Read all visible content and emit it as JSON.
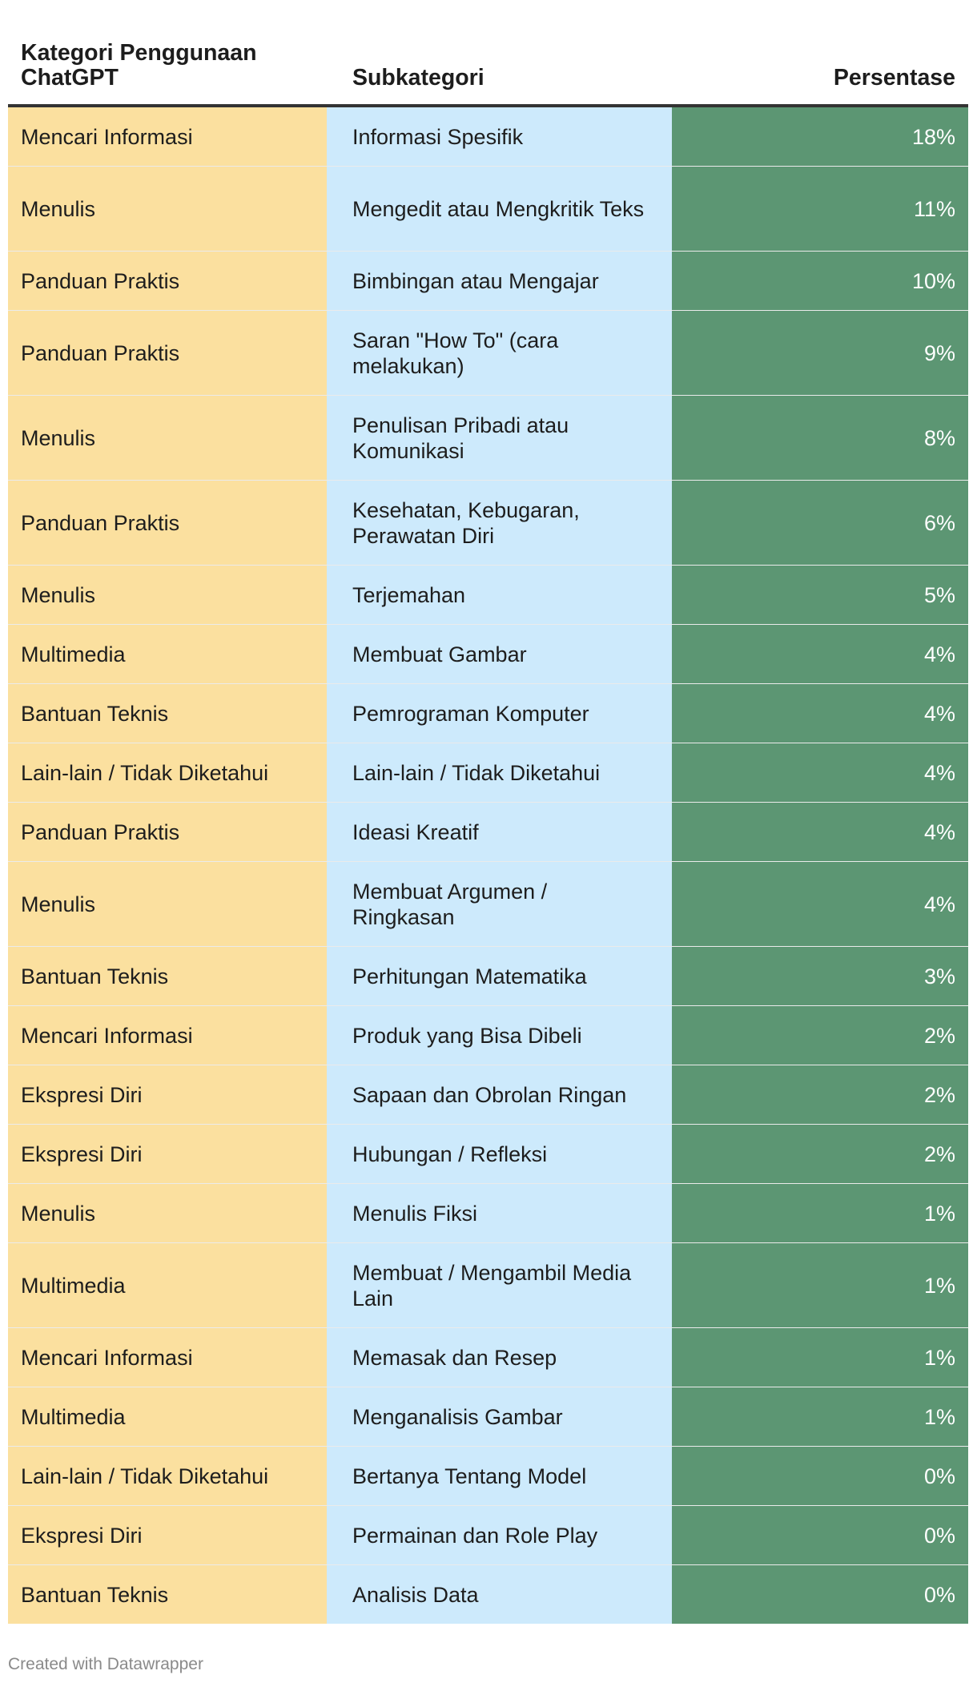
{
  "chart_data": {
    "type": "table",
    "columns": [
      "Kategori Penggunaan ChatGPT",
      "Subkategori",
      "Persentase"
    ],
    "rows": [
      {
        "category": "Mencari Informasi",
        "subcategory": "Informasi Spesifik",
        "percentage": "18%"
      },
      {
        "category": "Menulis",
        "subcategory": "Mengedit atau Mengkritik Teks",
        "percentage": "11%"
      },
      {
        "category": "Panduan Praktis",
        "subcategory": "Bimbingan atau Mengajar",
        "percentage": "10%"
      },
      {
        "category": "Panduan Praktis",
        "subcategory": "Saran \"How To\" (cara melakukan)",
        "percentage": "9%"
      },
      {
        "category": "Menulis",
        "subcategory": "Penulisan Pribadi atau Komunikasi",
        "percentage": "8%"
      },
      {
        "category": "Panduan Praktis",
        "subcategory": "Kesehatan, Kebugaran, Perawatan Diri",
        "percentage": "6%"
      },
      {
        "category": "Menulis",
        "subcategory": "Terjemahan",
        "percentage": "5%"
      },
      {
        "category": "Multimedia",
        "subcategory": "Membuat Gambar",
        "percentage": "4%"
      },
      {
        "category": "Bantuan Teknis",
        "subcategory": "Pemrograman Komputer",
        "percentage": "4%"
      },
      {
        "category": "Lain-lain / Tidak Diketahui",
        "subcategory": "Lain-lain / Tidak Diketahui",
        "percentage": "4%"
      },
      {
        "category": "Panduan Praktis",
        "subcategory": "Ideasi Kreatif",
        "percentage": "4%"
      },
      {
        "category": "Menulis",
        "subcategory": "Membuat Argumen / Ringkasan",
        "percentage": "4%"
      },
      {
        "category": "Bantuan Teknis",
        "subcategory": "Perhitungan Matematika",
        "percentage": "3%"
      },
      {
        "category": "Mencari Informasi",
        "subcategory": "Produk yang Bisa Dibeli",
        "percentage": "2%"
      },
      {
        "category": "Ekspresi Diri",
        "subcategory": "Sapaan dan Obrolan Ringan",
        "percentage": "2%"
      },
      {
        "category": "Ekspresi Diri",
        "subcategory": "Hubungan / Refleksi",
        "percentage": "2%"
      },
      {
        "category": "Menulis",
        "subcategory": "Menulis Fiksi",
        "percentage": "1%"
      },
      {
        "category": "Multimedia",
        "subcategory": "Membuat / Mengambil Media Lain",
        "percentage": "1%"
      },
      {
        "category": "Mencari Informasi",
        "subcategory": "Memasak dan Resep",
        "percentage": "1%"
      },
      {
        "category": "Multimedia",
        "subcategory": "Menganalisis Gambar",
        "percentage": "1%"
      },
      {
        "category": "Lain-lain / Tidak Diketahui",
        "subcategory": "Bertanya Tentang Model",
        "percentage": "0%"
      },
      {
        "category": "Ekspresi Diri",
        "subcategory": "Permainan dan Role Play",
        "percentage": "0%"
      },
      {
        "category": "Bantuan Teknis",
        "subcategory": "Analisis Data",
        "percentage": "0%"
      }
    ],
    "colors": {
      "category_column": "#fbe09f",
      "subcategory_column": "#cdeafc",
      "percentage_column": "#5c9673"
    }
  },
  "footer": "Created with Datawrapper"
}
